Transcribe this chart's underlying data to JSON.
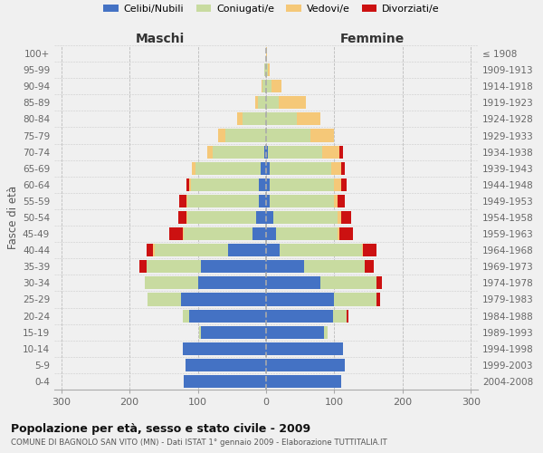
{
  "age_groups": [
    "0-4",
    "5-9",
    "10-14",
    "15-19",
    "20-24",
    "25-29",
    "30-34",
    "35-39",
    "40-44",
    "45-49",
    "50-54",
    "55-59",
    "60-64",
    "65-69",
    "70-74",
    "75-79",
    "80-84",
    "85-89",
    "90-94",
    "95-99",
    "100+"
  ],
  "birth_years": [
    "2004-2008",
    "1999-2003",
    "1994-1998",
    "1989-1993",
    "1984-1988",
    "1979-1983",
    "1974-1978",
    "1969-1973",
    "1964-1968",
    "1959-1963",
    "1954-1958",
    "1949-1953",
    "1944-1948",
    "1939-1943",
    "1934-1938",
    "1929-1933",
    "1924-1928",
    "1919-1923",
    "1914-1918",
    "1909-1913",
    "≤ 1908"
  ],
  "maschi": {
    "celibi": [
      120,
      118,
      122,
      95,
      112,
      125,
      100,
      95,
      55,
      20,
      15,
      10,
      10,
      8,
      3,
      0,
      0,
      0,
      0,
      0,
      0
    ],
    "coniugati": [
      0,
      0,
      0,
      3,
      10,
      48,
      78,
      80,
      108,
      100,
      100,
      105,
      100,
      95,
      75,
      60,
      35,
      12,
      5,
      2,
      0
    ],
    "vedovi": [
      0,
      0,
      0,
      0,
      0,
      0,
      0,
      0,
      2,
      2,
      2,
      2,
      2,
      5,
      8,
      10,
      8,
      4,
      2,
      0,
      0
    ],
    "divorziati": [
      0,
      0,
      0,
      0,
      0,
      0,
      0,
      10,
      10,
      20,
      12,
      10,
      5,
      0,
      0,
      0,
      0,
      0,
      0,
      0,
      0
    ]
  },
  "femmine": {
    "nubili": [
      110,
      115,
      112,
      85,
      98,
      100,
      80,
      55,
      20,
      15,
      10,
      5,
      5,
      5,
      2,
      0,
      0,
      0,
      0,
      0,
      0
    ],
    "coniugate": [
      0,
      0,
      0,
      5,
      20,
      62,
      82,
      90,
      120,
      90,
      95,
      95,
      95,
      90,
      80,
      65,
      45,
      18,
      8,
      2,
      0
    ],
    "vedove": [
      0,
      0,
      0,
      0,
      0,
      0,
      0,
      0,
      2,
      2,
      5,
      5,
      10,
      15,
      25,
      35,
      35,
      40,
      15,
      3,
      1
    ],
    "divorziate": [
      0,
      0,
      0,
      0,
      2,
      5,
      8,
      12,
      20,
      20,
      15,
      10,
      8,
      5,
      5,
      0,
      0,
      0,
      0,
      0,
      0
    ]
  },
  "colors": {
    "celibi_nubili": "#4472c4",
    "coniugati": "#c8dba0",
    "vedovi": "#f5c878",
    "divorziati": "#cc1111"
  },
  "xlim": 310,
  "title": "Popolazione per età, sesso e stato civile - 2009",
  "subtitle": "COMUNE DI BAGNOLO SAN VITO (MN) - Dati ISTAT 1° gennaio 2009 - Elaborazione TUTTITALIA.IT",
  "ylabel_left": "Fasce di età",
  "xlabel_maschi": "Maschi",
  "xlabel_femmine": "Femmine",
  "bg_color": "#f0f0f0",
  "plot_bg": "#f0f0f0"
}
